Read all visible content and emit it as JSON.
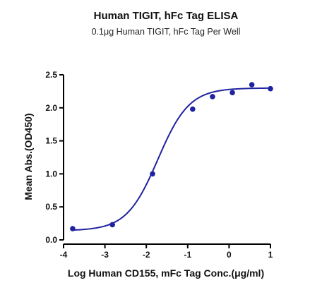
{
  "chart_data": {
    "type": "scatter",
    "title": "Human TIGIT, hFc Tag ELISA",
    "subtitle": "0.1μg Human TIGIT, hFc Tag Per Well",
    "xlabel": "Log Human CD155, mFc Tag Conc.(μg/ml)",
    "ylabel": "Mean Abs.(OD450)",
    "xlim": [
      -4,
      1
    ],
    "ylim": [
      0,
      2.5
    ],
    "x_ticks": [
      "-4",
      "-3",
      "-2",
      "-1",
      "0",
      "1"
    ],
    "y_ticks": [
      "0.0",
      "0.5",
      "1.0",
      "1.5",
      "2.0",
      "2.5"
    ],
    "grid": false,
    "legend": "none",
    "series": [
      {
        "points": [
          {
            "x": -3.78,
            "y": 0.17
          },
          {
            "x": -2.82,
            "y": 0.23
          },
          {
            "x": -1.85,
            "y": 1.0
          },
          {
            "x": -0.88,
            "y": 1.98
          },
          {
            "x": -0.4,
            "y": 2.17
          },
          {
            "x": 0.08,
            "y": 2.23
          },
          {
            "x": 0.55,
            "y": 2.35
          },
          {
            "x": 1.0,
            "y": 2.29
          }
        ],
        "fit": {
          "type": "sigmoid",
          "bottom": 0.14,
          "top": 2.3,
          "log_ec50": -1.72,
          "hill_slope": 1.15
        }
      }
    ],
    "colors": {
      "series": "#1f23a0",
      "axes": "#000000"
    }
  }
}
